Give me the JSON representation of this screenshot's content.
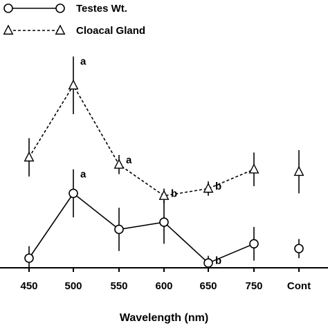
{
  "chart_data": {
    "type": "line",
    "xlabel": "Wavelength (nm)",
    "ylabel": "",
    "categories": [
      "450",
      "500",
      "550",
      "600",
      "650",
      "750",
      "Cont"
    ],
    "ylim": [
      0,
      10
    ],
    "grid": false,
    "legend_position": "top-left",
    "series": [
      {
        "name": "Testes Wt.",
        "marker": "circle",
        "line_style": "solid",
        "connected_points": 6,
        "values": [
          0.4,
          3.1,
          1.6,
          1.9,
          0.2,
          1.0,
          0.8
        ],
        "errors": [
          0.5,
          1.0,
          0.9,
          0.9,
          0.3,
          0.7,
          0.4
        ],
        "annotations": [
          "",
          "a",
          "",
          "",
          "b",
          "",
          ""
        ]
      },
      {
        "name": "Cloacal Gland",
        "marker": "triangle",
        "line_style": "dashed",
        "connected_points": 6,
        "values": [
          4.6,
          7.6,
          4.3,
          3.0,
          3.3,
          4.1,
          4.0
        ],
        "errors": [
          0.8,
          1.2,
          0.4,
          0.3,
          0.3,
          0.7,
          0.9
        ],
        "annotations": [
          "",
          "a",
          "a",
          "b",
          "b",
          "",
          ""
        ]
      }
    ]
  }
}
